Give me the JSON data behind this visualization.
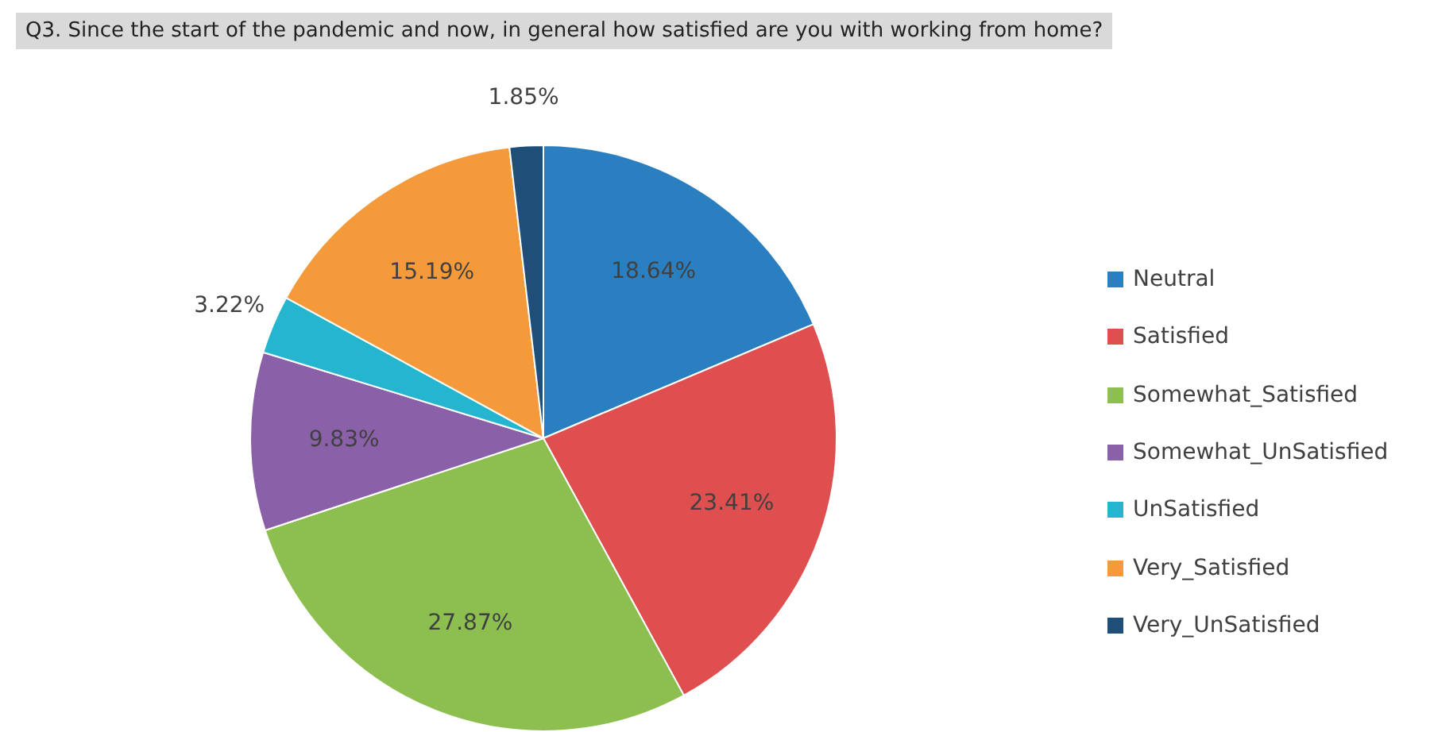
{
  "chart_data": {
    "type": "pie",
    "title": "Q3. Since the start of the pandemic and now, in general how satisfied are you with working from home?",
    "categories": [
      "Neutral",
      "Satisfied",
      "Somewhat_Satisfied",
      "Somewhat_UnSatisfied",
      "UnSatisfied",
      "Very_Satisfied",
      "Very_UnSatisfied"
    ],
    "values": [
      18.64,
      23.41,
      27.87,
      9.83,
      3.22,
      15.19,
      1.85
    ],
    "colors": [
      "#2a7fc1",
      "#e04f4f",
      "#8cbf4f",
      "#8a60a8",
      "#25b5cf",
      "#f59a3b",
      "#1f4e79"
    ],
    "value_labels": [
      "18.64%",
      "23.41%",
      "27.87%",
      "9.83%",
      "3.22%",
      "15.19%",
      "1.85%"
    ],
    "legend": "right"
  }
}
